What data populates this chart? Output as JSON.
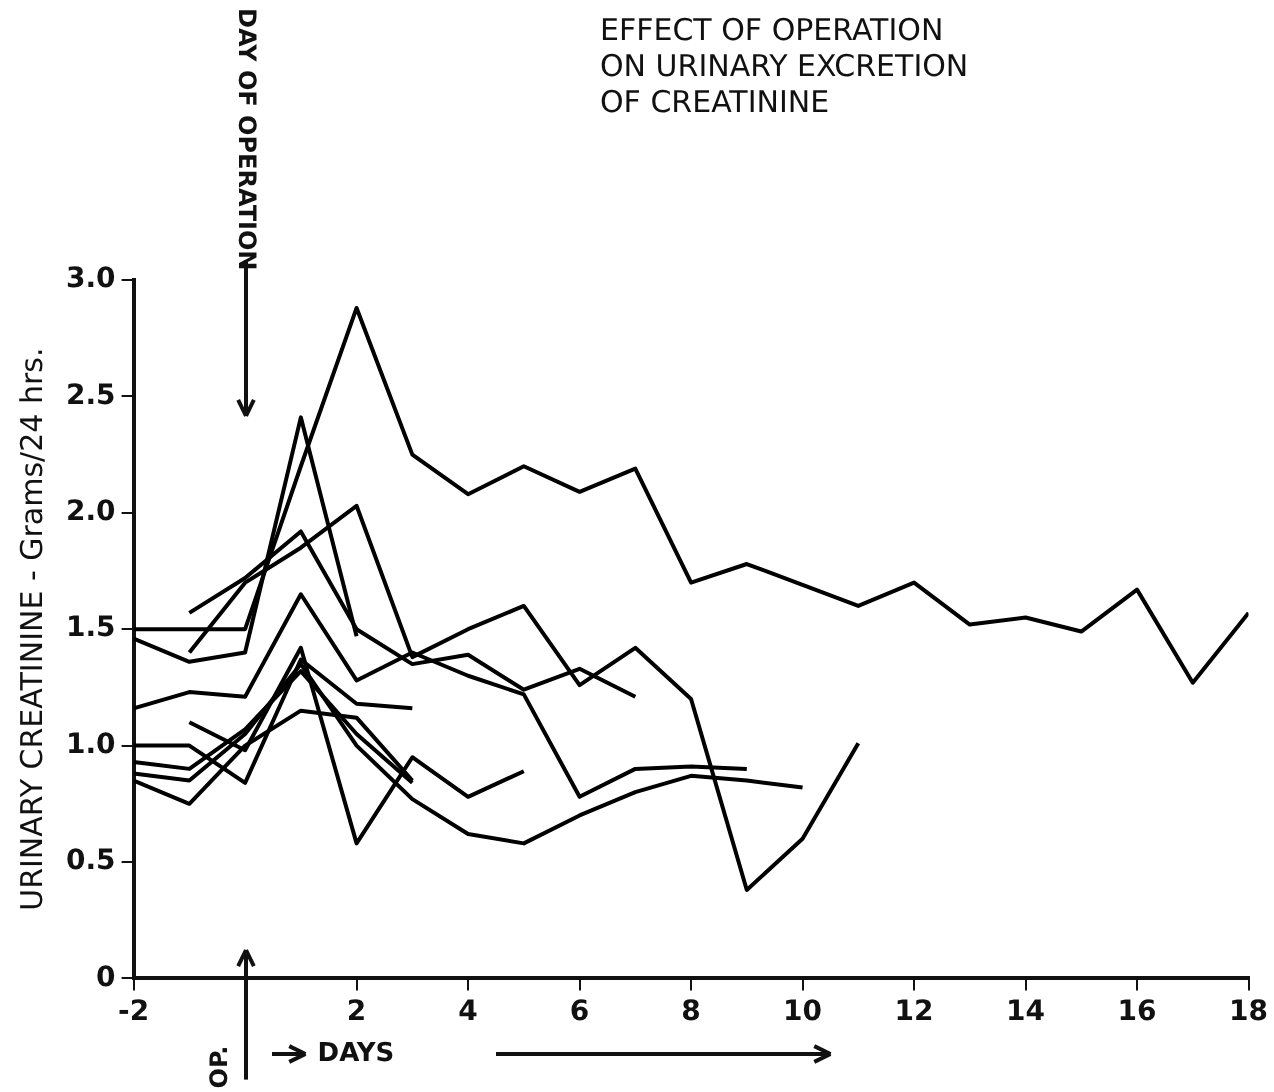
{
  "chart_data": {
    "type": "line",
    "title": "EFFECT OF OPERATION\nON URINARY EXCRETION\nOF CREATININE",
    "xlabel": "DAYS",
    "ylabel": "URINARY CREATININE - Grams/24 hrs.",
    "annotations": [
      "DAY OF OPERATION",
      "OP."
    ],
    "xlim": [
      -2,
      18
    ],
    "xticks": [
      -2,
      {
        "value": 0,
        "label": null
      },
      2,
      4,
      6,
      8,
      10,
      12,
      14,
      16,
      18
    ],
    "ylim": [
      0,
      3
    ],
    "yticks": [
      0,
      0.5,
      {
        "value": 1,
        "label": "1.0"
      },
      1.5,
      {
        "value": 2,
        "label": "2.0"
      },
      2.5,
      {
        "value": 3,
        "label": "3.0"
      }
    ],
    "grid": false,
    "legend": false,
    "line_style": "solid",
    "marker": "none",
    "series": [
      {
        "color": "#000000",
        "x": [
          -2,
          -1,
          0,
          1,
          2,
          3,
          4,
          5,
          6,
          7,
          8,
          9,
          10,
          11,
          12,
          13,
          14,
          15,
          16,
          17,
          18
        ],
        "values": [
          1.5,
          1.5,
          1.5,
          2.2,
          2.88,
          2.25,
          2.08,
          2.2,
          2.09,
          2.19,
          1.7,
          1.78,
          1.69,
          1.6,
          1.7,
          1.52,
          1.55,
          1.49,
          1.67,
          1.27,
          1.57
        ]
      },
      {
        "color": "#000000",
        "x": [
          -2,
          -1,
          0,
          1,
          2
        ],
        "values": [
          1.46,
          1.36,
          1.4,
          2.41,
          1.47
        ]
      },
      {
        "color": "#000000",
        "x": [
          -1,
          0,
          1,
          2,
          3,
          4,
          5,
          6,
          7,
          8,
          9,
          10,
          11
        ],
        "values": [
          1.4,
          1.7,
          1.85,
          2.03,
          1.38,
          1.5,
          1.6,
          1.26,
          1.42,
          1.2,
          0.38,
          0.6,
          1.01
        ]
      },
      {
        "color": "#000000",
        "x": [
          -1,
          0,
          1,
          2,
          3,
          4,
          5,
          6,
          7
        ],
        "values": [
          1.57,
          1.72,
          1.92,
          1.5,
          1.35,
          1.39,
          1.24,
          1.33,
          1.21
        ]
      },
      {
        "color": "#000000",
        "x": [
          -2,
          -1,
          0,
          1,
          2,
          3,
          4,
          5,
          6,
          7,
          8,
          9
        ],
        "values": [
          1.16,
          1.23,
          1.21,
          1.65,
          1.28,
          1.4,
          1.3,
          1.22,
          0.78,
          0.9,
          0.91,
          0.9
        ]
      },
      {
        "color": "#000000",
        "x": [
          -2,
          -1,
          0,
          1,
          2,
          3
        ],
        "values": [
          1.0,
          1.0,
          0.84,
          1.37,
          1.18,
          1.16
        ]
      },
      {
        "color": "#000000",
        "x": [
          -1,
          0,
          1,
          2,
          3,
          4,
          5
        ],
        "values": [
          1.1,
          0.98,
          1.42,
          0.58,
          0.95,
          0.78,
          0.89
        ]
      },
      {
        "color": "#000000",
        "x": [
          -2,
          -1,
          0,
          1,
          2,
          3
        ],
        "values": [
          0.93,
          0.9,
          1.07,
          1.32,
          1.05,
          0.84
        ]
      },
      {
        "color": "#000000",
        "x": [
          -2,
          -1,
          0,
          1,
          2,
          3,
          4,
          5,
          6,
          7,
          8,
          9,
          10
        ],
        "values": [
          0.88,
          0.85,
          1.05,
          1.35,
          1.0,
          0.77,
          0.62,
          0.58,
          0.7,
          0.8,
          0.87,
          0.85,
          0.82
        ]
      },
      {
        "color": "#000000",
        "x": [
          -2,
          -1,
          0,
          1,
          2,
          3
        ],
        "values": [
          0.85,
          0.75,
          1.0,
          1.15,
          1.12,
          0.85
        ]
      }
    ]
  }
}
